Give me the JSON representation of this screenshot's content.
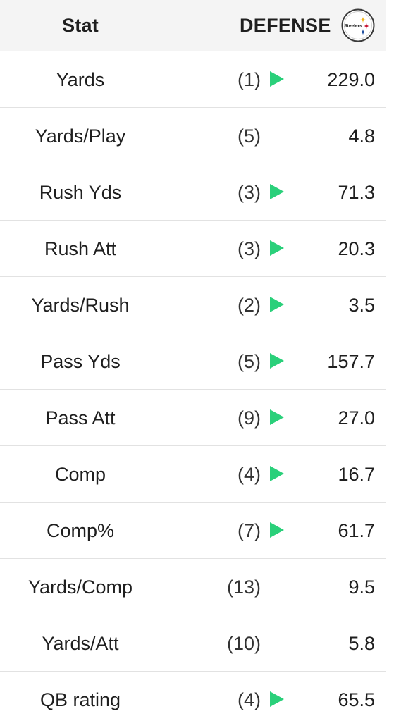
{
  "header": {
    "stat_label": "Stat",
    "defense_label": "DEFENSE",
    "logo_icon": "steelers-logo-icon",
    "logo_text": "Steelers"
  },
  "colors": {
    "arrow": "#2ad07a",
    "header_bg": "#f4f4f4"
  },
  "rows": [
    {
      "stat": "Yards",
      "rank": "(1)",
      "arrow": true,
      "value": "229.0"
    },
    {
      "stat": "Yards/Play",
      "rank": "(5)",
      "arrow": false,
      "value": "4.8"
    },
    {
      "stat": "Rush Yds",
      "rank": "(3)",
      "arrow": true,
      "value": "71.3"
    },
    {
      "stat": "Rush Att",
      "rank": "(3)",
      "arrow": true,
      "value": "20.3"
    },
    {
      "stat": "Yards/Rush",
      "rank": "(2)",
      "arrow": true,
      "value": "3.5"
    },
    {
      "stat": "Pass Yds",
      "rank": "(5)",
      "arrow": true,
      "value": "157.7"
    },
    {
      "stat": "Pass Att",
      "rank": "(9)",
      "arrow": true,
      "value": "27.0"
    },
    {
      "stat": "Comp",
      "rank": "(4)",
      "arrow": true,
      "value": "16.7"
    },
    {
      "stat": "Comp%",
      "rank": "(7)",
      "arrow": true,
      "value": "61.7"
    },
    {
      "stat": "Yards/Comp",
      "rank": "(13)",
      "arrow": false,
      "value": "9.5"
    },
    {
      "stat": "Yards/Att",
      "rank": "(10)",
      "arrow": false,
      "value": "5.8"
    },
    {
      "stat": "QB rating",
      "rank": "(4)",
      "arrow": true,
      "value": "65.5"
    }
  ]
}
